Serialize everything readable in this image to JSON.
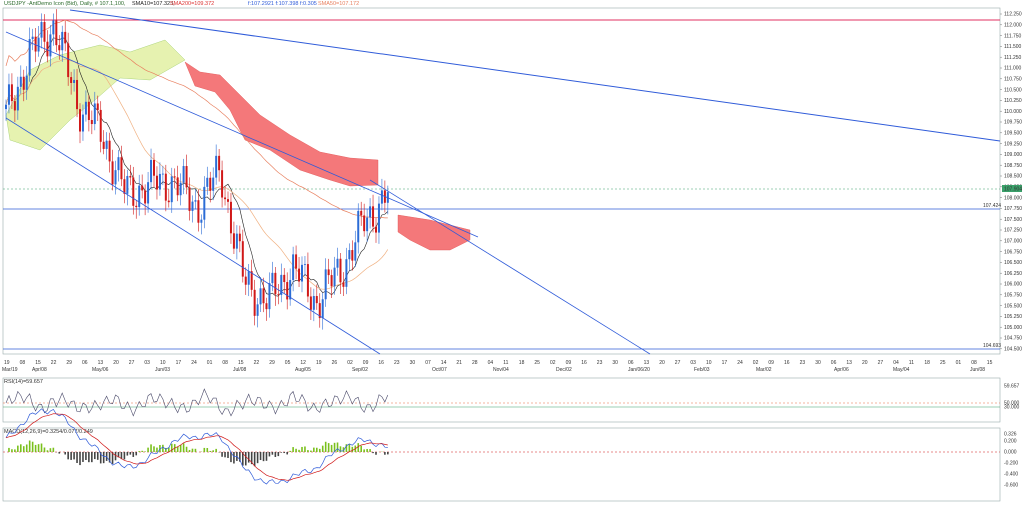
{
  "header": {
    "symbol": "USDJPY -AntDemo Icon (Bid), Daily, # 107.1,100,",
    "sma10": "SMA10=107.323,",
    "sma200": "SMA200=109.372",
    "price_readout": "f:107.2921 f:107.398 f:0.305",
    "sma_other": "SMA50=107.172"
  },
  "price_axis": {
    "ticks": [
      "112.250",
      "112.000",
      "111.750",
      "111.500",
      "111.250",
      "111.000",
      "110.750",
      "110.500",
      "110.250",
      "110.000",
      "109.750",
      "109.500",
      "109.250",
      "109.000",
      "108.750",
      "108.500",
      "108.250",
      "108.000",
      "107.750",
      "107.500",
      "107.250",
      "107.000",
      "106.750",
      "106.500",
      "106.250",
      "106.000",
      "105.750",
      "105.500",
      "105.250",
      "105.000",
      "104.750",
      "104.500"
    ],
    "last_price_label": "107.904",
    "h_line_label_1": "107.424",
    "h_line_label_2": "104.693"
  },
  "date_axis": {
    "day_ticks": [
      "19",
      "08",
      "15",
      "22",
      "29",
      "06",
      "13",
      "20",
      "27",
      "03",
      "10",
      "17",
      "24",
      "01",
      "08",
      "15",
      "22",
      "29",
      "05",
      "12",
      "19",
      "26",
      "02",
      "09",
      "16",
      "23",
      "30",
      "07",
      "14",
      "21",
      "28",
      "04",
      "11",
      "18",
      "25",
      "02",
      "09",
      "16",
      "23",
      "30",
      "06",
      "13",
      "20",
      "27",
      "03",
      "10",
      "17",
      "24",
      "02",
      "09",
      "16",
      "23",
      "30",
      "06",
      "13",
      "20",
      "27",
      "04",
      "11",
      "18",
      "25",
      "01",
      "08",
      "15"
    ],
    "month_labels": [
      "Mar/19",
      "Apr/08",
      "May/06",
      "Jun/03",
      "Jul/08",
      "Aug/05",
      "Sep/02",
      "Oct/07",
      "Nov/04",
      "Dec/02",
      "Jan/06/20",
      "Feb/03",
      "Mar/02",
      "Apr/06",
      "May/04",
      "Jun/08"
    ]
  },
  "rsi": {
    "label": "RSI(14)=59.657",
    "ticks": [
      "59.657",
      "50.000",
      "30.000"
    ]
  },
  "macd": {
    "label": "MACD(12,26,9)=0.3254/0.077/0.249",
    "ticks": [
      "0.326",
      "0.200",
      "0.000",
      "-0.200",
      "-0.400",
      "-0.600"
    ]
  },
  "colors": {
    "up_candle": "#2b6cd6",
    "down_candle": "#d01818",
    "trendline": "#2f5bd9",
    "resistance": "#e03060",
    "kumo_bull": "#e6f2b0",
    "kumo_bear": "#f4787a",
    "sma_long": "#e88060",
    "sma_mid": "#f0b080",
    "rsi_line": "#4a4a6a",
    "macd_line": "#2f5bd9",
    "signal_line": "#d01818",
    "hist_pos": "#7ac01c",
    "hist_neg": "#444444"
  },
  "chart_data": {
    "type": "line",
    "title": "",
    "xlabel": "",
    "ylabel": "",
    "ylim": [
      104.5,
      112.25
    ],
    "series": [
      {
        "name": "",
        "x": [
          "Mar/19",
          "Apr/08",
          "Apr/22",
          "May/06",
          "May/20",
          "Jun/03",
          "Jun/17",
          "Jul/01",
          "Jul/15",
          "Jul/29",
          "Aug/05",
          "Aug/12",
          "Aug/19",
          "Aug/26",
          "Sep/02",
          "Sep/09",
          "Sep/16"
        ],
        "values": [
          109.9,
          111.3,
          112.0,
          110.2,
          109.5,
          108.1,
          108.3,
          108.4,
          107.8,
          108.6,
          106.0,
          105.6,
          106.4,
          105.6,
          106.3,
          107.4,
          108.1
        ]
      }
    ]
  }
}
